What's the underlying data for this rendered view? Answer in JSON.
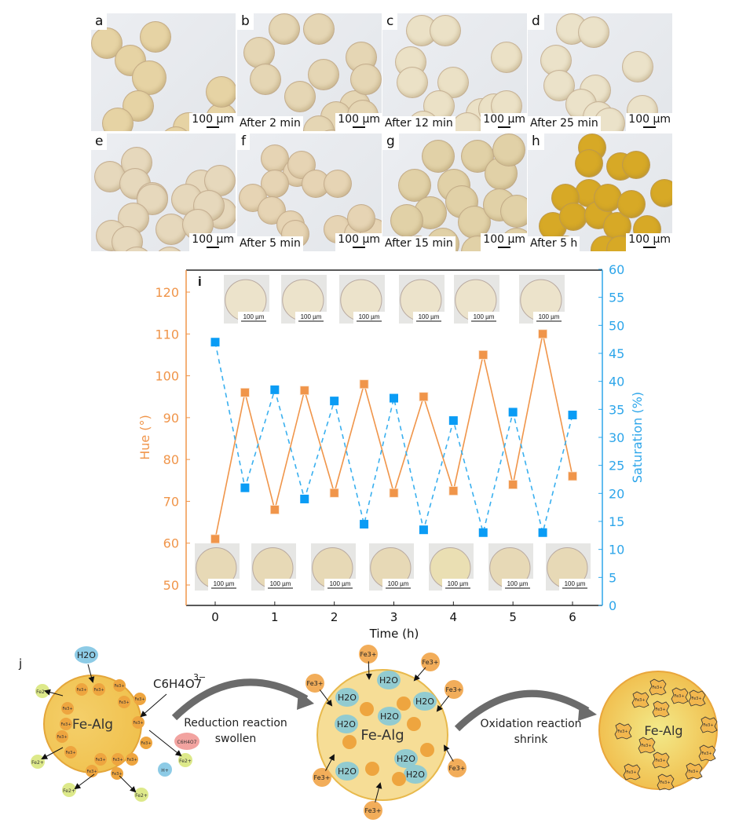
{
  "panels": [
    {
      "label": "a",
      "caption": "",
      "scale": "100 µm",
      "tint": "#e6d3a4",
      "beads": [
        [
          0,
          18,
          38
        ],
        [
          30,
          40,
          38
        ],
        [
          62,
          10,
          38
        ],
        [
          52,
          60,
          42
        ],
        [
          40,
          98,
          38
        ],
        [
          14,
          120,
          38
        ],
        [
          104,
          126,
          38
        ],
        [
          68,
          150,
          38
        ],
        [
          88,
          144,
          38
        ],
        [
          146,
          114,
          38
        ],
        [
          146,
          80,
          38
        ]
      ]
    },
    {
      "label": "b",
      "caption": "After 2 min",
      "scale": "100 µm",
      "tint": "#e5d6b4",
      "beads": [
        [
          40,
          0,
          38
        ],
        [
          84,
          0,
          38
        ],
        [
          8,
          30,
          38
        ],
        [
          16,
          64,
          38
        ],
        [
          90,
          58,
          38
        ],
        [
          60,
          86,
          38
        ],
        [
          130,
          98,
          38
        ],
        [
          106,
          112,
          38
        ],
        [
          84,
          130,
          38
        ],
        [
          100,
          148,
          38
        ],
        [
          138,
          36,
          38
        ],
        [
          144,
          64,
          38
        ],
        [
          140,
          110,
          38
        ],
        [
          58,
          150,
          38
        ]
      ]
    },
    {
      "label": "c",
      "caption": "After 12 min",
      "scale": "100 µm",
      "tint": "#ebe1c6",
      "beads": [
        [
          30,
          2,
          38
        ],
        [
          60,
          2,
          38
        ],
        [
          16,
          42,
          38
        ],
        [
          18,
          68,
          38
        ],
        [
          70,
          68,
          38
        ],
        [
          52,
          98,
          38
        ],
        [
          32,
          124,
          38
        ],
        [
          106,
          108,
          38
        ],
        [
          88,
          126,
          38
        ],
        [
          122,
          102,
          38
        ],
        [
          138,
          98,
          38
        ],
        [
          138,
          36,
          38
        ]
      ]
    },
    {
      "label": "d",
      "caption": "After 25 min",
      "scale": "100 µm",
      "tint": "#ebe2c9",
      "beads": [
        [
          36,
          0,
          38
        ],
        [
          64,
          4,
          38
        ],
        [
          16,
          40,
          38
        ],
        [
          20,
          72,
          38
        ],
        [
          66,
          78,
          38
        ],
        [
          48,
          96,
          38
        ],
        [
          70,
          112,
          38
        ],
        [
          84,
          120,
          38
        ],
        [
          126,
          104,
          38
        ],
        [
          120,
          48,
          38
        ]
      ]
    },
    {
      "label": "e",
      "caption": "",
      "scale": "100 µm",
      "tint": "#e6d8bc",
      "beads": [
        [
          4,
          35,
          38
        ],
        [
          38,
          17,
          38
        ],
        [
          36,
          44,
          38
        ],
        [
          58,
          62,
          38
        ],
        [
          58,
          64,
          38
        ],
        [
          82,
          102,
          38
        ],
        [
          34,
          88,
          38
        ],
        [
          6,
          110,
          38
        ],
        [
          26,
          118,
          38
        ],
        [
          120,
          46,
          38
        ],
        [
          144,
          40,
          38
        ],
        [
          146,
          82,
          38
        ],
        [
          102,
          64,
          38
        ],
        [
          130,
          72,
          38
        ],
        [
          116,
          96,
          38
        ],
        [
          38,
          144,
          38
        ],
        [
          80,
          144,
          38
        ]
      ]
    },
    {
      "label": "f",
      "caption": "After 5 min",
      "scale": "100 µm",
      "tint": "#e6d4b4",
      "beads": [
        [
          30,
          14,
          34
        ],
        [
          58,
          32,
          34
        ],
        [
          30,
          46,
          34
        ],
        [
          64,
          22,
          34
        ],
        [
          82,
          46,
          34
        ],
        [
          2,
          64,
          34
        ],
        [
          26,
          80,
          34
        ],
        [
          50,
          98,
          34
        ],
        [
          56,
          110,
          34
        ],
        [
          110,
          46,
          34
        ],
        [
          110,
          104,
          34
        ],
        [
          136,
          110,
          34
        ],
        [
          156,
          108,
          34
        ],
        [
          140,
          90,
          34
        ]
      ]
    },
    {
      "label": "g",
      "caption": "After 15 min",
      "scale": "100 µm",
      "tint": "#e1d1a7",
      "beads": [
        [
          50,
          8,
          40
        ],
        [
          20,
          45,
          40
        ],
        [
          70,
          45,
          40
        ],
        [
          100,
          8,
          40
        ],
        [
          130,
          30,
          40
        ],
        [
          140,
          0,
          40
        ],
        [
          40,
          80,
          40
        ],
        [
          80,
          66,
          40
        ],
        [
          10,
          90,
          40
        ],
        [
          56,
          120,
          40
        ],
        [
          96,
          92,
          40
        ],
        [
          128,
          70,
          40
        ],
        [
          150,
          78,
          40
        ],
        [
          150,
          120,
          40
        ],
        [
          24,
          130,
          40
        ],
        [
          100,
          130,
          40
        ]
      ]
    },
    {
      "label": "h",
      "caption": "After 5 h",
      "scale": "100 µm",
      "tint": "#d7a926",
      "beads": [
        [
          64,
          0,
          34
        ],
        [
          60,
          20,
          34
        ],
        [
          100,
          24,
          34
        ],
        [
          120,
          22,
          34
        ],
        [
          60,
          58,
          34
        ],
        [
          30,
          64,
          34
        ],
        [
          14,
          100,
          34
        ],
        [
          40,
          88,
          34
        ],
        [
          72,
          86,
          34
        ],
        [
          84,
          64,
          34
        ],
        [
          96,
          100,
          34
        ],
        [
          114,
          72,
          34
        ],
        [
          134,
          104,
          34
        ],
        [
          156,
          58,
          34
        ],
        [
          124,
          146,
          34
        ],
        [
          80,
          130,
          34
        ],
        [
          30,
          130,
          34
        ],
        [
          100,
          130,
          34
        ]
      ]
    }
  ],
  "chart_data": {
    "type": "line",
    "panel_label": "i",
    "title": "",
    "xlabel": "Time (h)",
    "ylabel_left": "Hue (°)",
    "ylabel_right": "Saturation (%)",
    "x_ticks": [
      0,
      1,
      2,
      3,
      4,
      5,
      6
    ],
    "x_range": [
      -0.5,
      6.5
    ],
    "y_left_range": [
      45,
      125
    ],
    "y_left_ticks": [
      50,
      60,
      70,
      80,
      90,
      100,
      110,
      120
    ],
    "y_right_range": [
      0,
      60
    ],
    "y_right_ticks": [
      0,
      5,
      10,
      15,
      20,
      25,
      30,
      35,
      40,
      45,
      50,
      55,
      60
    ],
    "x": [
      0,
      0.5,
      1,
      1.5,
      2,
      2.5,
      3,
      3.5,
      4,
      4.5,
      5,
      5.5,
      6
    ],
    "series": [
      {
        "name": "Hue",
        "axis": "left",
        "color": "#f0954a",
        "style": "solid",
        "marker": "square",
        "values": [
          61,
          96,
          68,
          96.5,
          72,
          98,
          72,
          95,
          72.5,
          105,
          74,
          110,
          76
        ]
      },
      {
        "name": "Saturation",
        "axis": "right",
        "color": "#0a9cf5",
        "line_color": "#3ab0ef",
        "style": "dashed",
        "marker": "square",
        "values": [
          47,
          21,
          38.5,
          19,
          36.5,
          14.5,
          37,
          13.5,
          33,
          13,
          34.5,
          13,
          34
        ]
      }
    ],
    "top_thumb_scale": "100 µm",
    "bottom_thumb_scale": "100 µm",
    "top_thumbs_count": 6,
    "bottom_thumbs_count": 7,
    "colors": {
      "left_axis": "#f0954a",
      "right_axis": "#2ea6ea",
      "frame": "#222222"
    }
  },
  "schematic": {
    "panel_label": "j",
    "left_bead": {
      "label": "Fe-Alg",
      "inside_ion": "Fe3+",
      "water": "H2O",
      "citrate": "C6H4O7",
      "citrate_charge": "3−",
      "released": "Fe2+",
      "proton": "H+",
      "complex": "C6H4O7"
    },
    "arrow1": {
      "line1": "Reduction reaction",
      "line2": "swollen"
    },
    "middle_bead": {
      "label": "Fe-Alg",
      "ion": "Fe",
      "ion_charge": "3+",
      "water": "H2O"
    },
    "arrow2": {
      "line1": "Oxidation reaction",
      "line2": "shrink"
    },
    "right_bead": {
      "label": "Fe-Alg",
      "ion": "Fe3+"
    }
  }
}
